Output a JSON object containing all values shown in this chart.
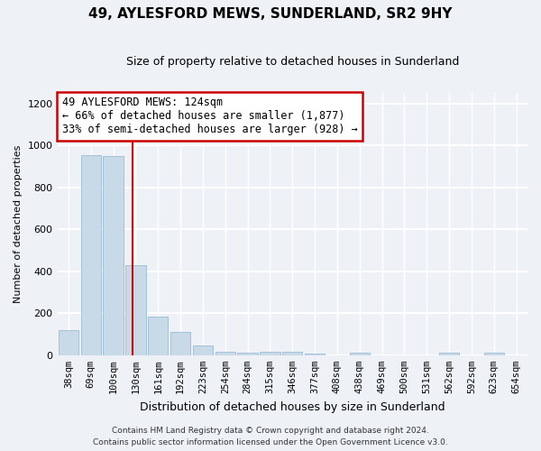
{
  "title": "49, AYLESFORD MEWS, SUNDERLAND, SR2 9HY",
  "subtitle": "Size of property relative to detached houses in Sunderland",
  "xlabel": "Distribution of detached houses by size in Sunderland",
  "ylabel": "Number of detached properties",
  "categories": [
    "38sqm",
    "69sqm",
    "100sqm",
    "130sqm",
    "161sqm",
    "192sqm",
    "223sqm",
    "254sqm",
    "284sqm",
    "315sqm",
    "346sqm",
    "377sqm",
    "408sqm",
    "438sqm",
    "469sqm",
    "500sqm",
    "531sqm",
    "562sqm",
    "592sqm",
    "623sqm",
    "654sqm"
  ],
  "values": [
    120,
    955,
    950,
    430,
    185,
    110,
    45,
    18,
    12,
    15,
    15,
    8,
    0,
    10,
    0,
    0,
    0,
    10,
    0,
    10,
    0
  ],
  "bar_color": "#c8d9e8",
  "bar_edge_color": "#9bbdd4",
  "property_line_x": 2.87,
  "annotation_title": "49 AYLESFORD MEWS: 124sqm",
  "annotation_line1": "← 66% of detached houses are smaller (1,877)",
  "annotation_line2": "33% of semi-detached houses are larger (928) →",
  "annotation_box_color": "white",
  "annotation_box_edge_color": "#cc0000",
  "vline_color": "#cc0000",
  "ylim": [
    0,
    1250
  ],
  "yticks": [
    0,
    200,
    400,
    600,
    800,
    1000,
    1200
  ],
  "footer1": "Contains HM Land Registry data © Crown copyright and database right 2024.",
  "footer2": "Contains public sector information licensed under the Open Government Licence v3.0.",
  "background_color": "#eef2f7",
  "grid_color": "white",
  "title_fontsize": 11,
  "subtitle_fontsize": 9,
  "ylabel_fontsize": 8,
  "xlabel_fontsize": 9,
  "tick_fontsize": 7.5,
  "annotation_fontsize": 8.5
}
